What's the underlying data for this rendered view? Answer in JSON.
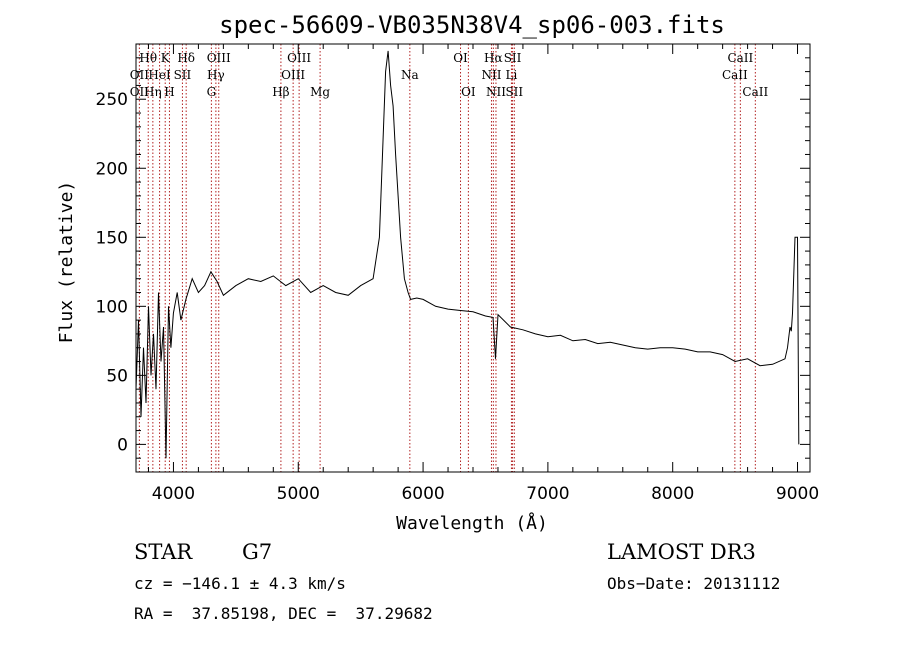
{
  "chart_data": {
    "type": "line",
    "title": "spec-56609-VB035N38V4_sp06-003.fits",
    "xlabel": "Wavelength (Å)",
    "ylabel": "Flux (relative)",
    "xlim": [
      3700,
      9100
    ],
    "ylim": [
      -20,
      290
    ],
    "xticks": [
      4000,
      5000,
      6000,
      7000,
      8000,
      9000
    ],
    "yticks": [
      0,
      50,
      100,
      150,
      200,
      250
    ],
    "series": [
      {
        "name": "flux",
        "x": [
          3700,
          3720,
          3740,
          3760,
          3780,
          3800,
          3820,
          3840,
          3860,
          3880,
          3900,
          3920,
          3940,
          3960,
          3980,
          4000,
          4030,
          4060,
          4100,
          4150,
          4200,
          4250,
          4300,
          4350,
          4400,
          4500,
          4600,
          4700,
          4800,
          4900,
          5000,
          5100,
          5200,
          5300,
          5400,
          5500,
          5600,
          5650,
          5700,
          5720,
          5740,
          5760,
          5780,
          5800,
          5820,
          5850,
          5880,
          5900,
          5950,
          6000,
          6100,
          6200,
          6300,
          6400,
          6500,
          6560,
          6580,
          6600,
          6700,
          6800,
          6900,
          7000,
          7100,
          7200,
          7300,
          7400,
          7500,
          7600,
          7700,
          7800,
          7900,
          8000,
          8100,
          8200,
          8300,
          8400,
          8500,
          8600,
          8700,
          8800,
          8900,
          8920,
          8940,
          8950,
          8960,
          8980,
          9000,
          9010
        ],
        "y": [
          40,
          90,
          20,
          70,
          30,
          100,
          50,
          80,
          40,
          110,
          60,
          85,
          -10,
          100,
          70,
          95,
          110,
          90,
          105,
          120,
          110,
          115,
          125,
          118,
          108,
          115,
          120,
          118,
          122,
          115,
          120,
          110,
          115,
          110,
          108,
          115,
          120,
          150,
          270,
          285,
          260,
          245,
          210,
          180,
          150,
          120,
          110,
          105,
          106,
          105,
          100,
          98,
          97,
          96,
          93,
          92,
          62,
          94,
          85,
          83,
          80,
          78,
          79,
          75,
          76,
          73,
          74,
          72,
          70,
          69,
          70,
          70,
          69,
          67,
          67,
          65,
          60,
          62,
          57,
          58,
          62,
          70,
          85,
          82,
          95,
          150,
          150,
          0
        ]
      }
    ],
    "line_labels": [
      {
        "label": "Hθ",
        "wavelength": 3798,
        "row": 1
      },
      {
        "label": "OII",
        "wavelength": 3727,
        "row": 2
      },
      {
        "label": "OII",
        "wavelength": 3727,
        "row": 3
      },
      {
        "label": "Hη",
        "wavelength": 3835,
        "row": 3
      },
      {
        "label": "K",
        "wavelength": 3934,
        "row": 1
      },
      {
        "label": "HeI",
        "wavelength": 3889,
        "row": 2
      },
      {
        "label": "H",
        "wavelength": 3968,
        "row": 3
      },
      {
        "label": "SII",
        "wavelength": 4072,
        "row": 2
      },
      {
        "label": "Hδ",
        "wavelength": 4102,
        "row": 1
      },
      {
        "label": "OIII",
        "wavelength": 4363,
        "row": 1
      },
      {
        "label": "Hγ",
        "wavelength": 4340,
        "row": 2
      },
      {
        "label": "G",
        "wavelength": 4304,
        "row": 3
      },
      {
        "label": "Hβ",
        "wavelength": 4861,
        "row": 3
      },
      {
        "label": "OIII",
        "wavelength": 5007,
        "row": 1
      },
      {
        "label": "OIII",
        "wavelength": 4959,
        "row": 2
      },
      {
        "label": "Mg",
        "wavelength": 5175,
        "row": 3
      },
      {
        "label": "Na",
        "wavelength": 5894,
        "row": 2
      },
      {
        "label": "OI",
        "wavelength": 6300,
        "row": 1
      },
      {
        "label": "OI",
        "wavelength": 6363,
        "row": 3
      },
      {
        "label": "Hα",
        "wavelength": 6563,
        "row": 1
      },
      {
        "label": "NII",
        "wavelength": 6548,
        "row": 2
      },
      {
        "label": "NII",
        "wavelength": 6584,
        "row": 3
      },
      {
        "label": "SII",
        "wavelength": 6717,
        "row": 1
      },
      {
        "label": "Li",
        "wavelength": 6708,
        "row": 2
      },
      {
        "label": "SII",
        "wavelength": 6731,
        "row": 3
      },
      {
        "label": "CaII",
        "wavelength": 8542,
        "row": 1
      },
      {
        "label": "CaII",
        "wavelength": 8498,
        "row": 2
      },
      {
        "label": "CaII",
        "wavelength": 8662,
        "row": 3
      }
    ]
  },
  "info": {
    "object_class": "STAR",
    "subclass": "G7",
    "survey": "LAMOST DR3",
    "redshift": "cz = −146.1 ± 4.3 km/s",
    "obs_date": "Obs−Date: 20131112",
    "coords": "RA =  37.85198, DEC =  37.29682"
  }
}
